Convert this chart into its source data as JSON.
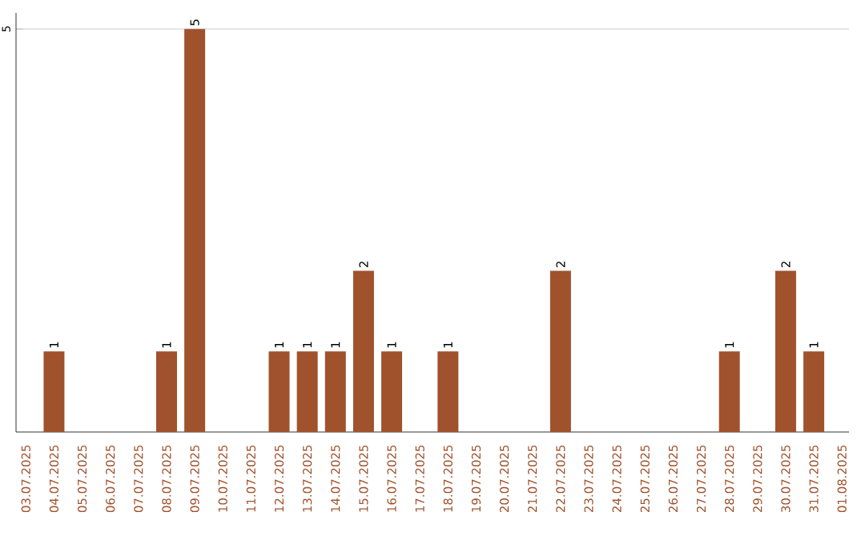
{
  "chart_data": {
    "type": "bar",
    "categories": [
      "03.07.2025",
      "04.07.2025",
      "05.07.2025",
      "06.07.2025",
      "07.07.2025",
      "08.07.2025",
      "09.07.2025",
      "10.07.2025",
      "11.07.2025",
      "12.07.2025",
      "13.07.2025",
      "14.07.2025",
      "15.07.2025",
      "16.07.2025",
      "17.07.2025",
      "18.07.2025",
      "19.07.2025",
      "20.07.2025",
      "21.07.2025",
      "22.07.2025",
      "23.07.2025",
      "24.07.2025",
      "25.07.2025",
      "26.07.2025",
      "27.07.2025",
      "28.07.2025",
      "29.07.2025",
      "30.07.2025",
      "31.07.2025",
      "01.08.2025"
    ],
    "values": [
      0,
      1,
      0,
      0,
      0,
      1,
      5,
      0,
      0,
      1,
      1,
      1,
      2,
      1,
      0,
      1,
      0,
      0,
      0,
      2,
      0,
      0,
      0,
      0,
      0,
      1,
      0,
      2,
      1,
      0
    ],
    "value_labels": [
      null,
      "1",
      null,
      null,
      null,
      "1",
      "5",
      null,
      null,
      "1",
      "1",
      "1",
      "2",
      "1",
      null,
      "1",
      null,
      null,
      null,
      "2",
      null,
      null,
      null,
      null,
      null,
      "1",
      null,
      "2",
      "1",
      null
    ],
    "color": "#a0522d",
    "ylim": [
      0,
      5.2
    ],
    "yticks": [
      5
    ],
    "grid": "y"
  }
}
